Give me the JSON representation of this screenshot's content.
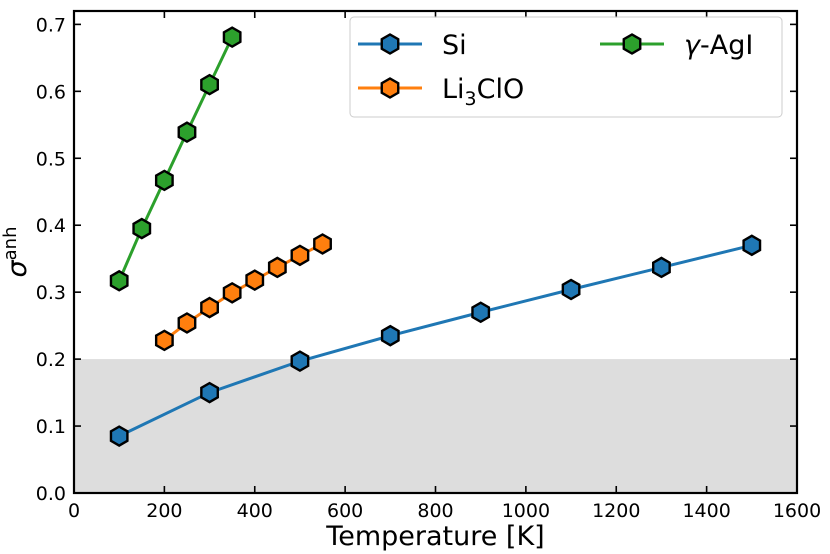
{
  "chart_data": {
    "type": "line",
    "title": "",
    "xlabel": "Temperature [K]",
    "ylabel": {
      "base": "σ",
      "superscript": "anh"
    },
    "xlim": [
      0,
      1600
    ],
    "ylim": [
      0,
      0.72
    ],
    "xticks": [
      0,
      200,
      400,
      600,
      800,
      1000,
      1200,
      1400,
      1600
    ],
    "xtick_labels": [
      "0",
      "200",
      "400",
      "600",
      "800",
      "1000",
      "1200",
      "1400",
      "1600"
    ],
    "yticks": [
      0.0,
      0.1,
      0.2,
      0.3,
      0.4,
      0.5,
      0.6,
      0.7
    ],
    "ytick_labels": [
      "0.0",
      "0.1",
      "0.2",
      "0.3",
      "0.4",
      "0.5",
      "0.6",
      "0.7"
    ],
    "grid": false,
    "shaded_region": {
      "y_from": 0.0,
      "y_to": 0.2,
      "color": "#dddddd"
    },
    "legend_position": "top-right",
    "series": [
      {
        "name": "Si",
        "legend_parts": [
          {
            "text": "Si",
            "style": "normal"
          }
        ],
        "color": "#1f77b4",
        "marker": "hexagon",
        "x": [
          100,
          300,
          500,
          700,
          900,
          1100,
          1300,
          1500
        ],
        "y": [
          0.085,
          0.15,
          0.197,
          0.235,
          0.27,
          0.304,
          0.337,
          0.37
        ]
      },
      {
        "name": "Li3ClO",
        "legend_parts": [
          {
            "text": "Li",
            "style": "normal"
          },
          {
            "text": "3",
            "style": "sub"
          },
          {
            "text": "ClO",
            "style": "normal"
          }
        ],
        "color": "#ff7f0e",
        "marker": "hexagon",
        "x": [
          200,
          250,
          300,
          350,
          400,
          450,
          500,
          550
        ],
        "y": [
          0.228,
          0.254,
          0.277,
          0.299,
          0.318,
          0.337,
          0.355,
          0.372
        ]
      },
      {
        "name": "γ-AgI",
        "legend_parts": [
          {
            "text": "γ",
            "style": "italic"
          },
          {
            "text": "-AgI",
            "style": "normal"
          }
        ],
        "color": "#2ca02c",
        "marker": "hexagon",
        "x": [
          100,
          150,
          200,
          250,
          300,
          350
        ],
        "y": [
          0.317,
          0.395,
          0.467,
          0.539,
          0.61,
          0.681
        ]
      }
    ]
  }
}
